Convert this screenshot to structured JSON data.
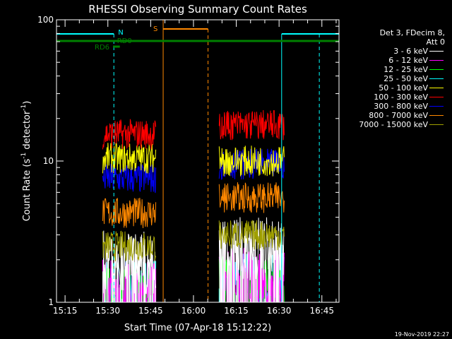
{
  "chart_data": {
    "type": "line",
    "title": "RHESSI Observing Summary Count Rates",
    "xlabel": "Start Time (07-Apr-18 15:12:22)",
    "ylabel_main": "Count Rate (s",
    "ylabel_sup1": "-1",
    "ylabel_mid": " detector",
    "ylabel_sup2": "-1",
    "ylabel_end": ")",
    "yscale": "log",
    "ylim": [
      1,
      100
    ],
    "xlim_minutes": [
      15.2,
      16.85
    ],
    "x_ticks": [
      "15:15",
      "15:30",
      "15:45",
      "16:00",
      "16:15",
      "16:30",
      "16:45"
    ],
    "y_ticks": [
      "1",
      "10",
      "100"
    ],
    "legend_header_1": "Det 3, FDecim 8,",
    "legend_header_2": "Att 0",
    "series": [
      {
        "name": "3 - 6 keV",
        "color": "#ffffff",
        "level": [
          2.1,
          2.6
        ]
      },
      {
        "name": "6 - 12 keV",
        "color": "#ff00ff",
        "level": [
          1.3,
          1.6
        ]
      },
      {
        "name": "12 - 25 keV",
        "color": "#00ff00",
        "level": [
          1.2,
          1.4
        ]
      },
      {
        "name": "25 - 50 keV",
        "color": "#00ffff",
        "level": [
          1.3,
          1.5
        ]
      },
      {
        "name": "50 - 100 keV",
        "color": "#ffff00",
        "level": [
          10.5,
          10.0
        ]
      },
      {
        "name": "100 - 300 keV",
        "color": "#ff0000",
        "level": [
          15.5,
          18.0
        ]
      },
      {
        "name": "300 - 800 keV",
        "color": "#0000ff",
        "level": [
          7.5,
          9.5
        ]
      },
      {
        "name": "800 - 7000 keV",
        "color": "#ff8800",
        "level": [
          4.3,
          5.5
        ]
      },
      {
        "name": "7000 - 15000 keV",
        "color": "#a0a000",
        "level": [
          2.5,
          3.0
        ]
      }
    ],
    "data_windows": [
      [
        15.47,
        15.78
      ],
      [
        16.15,
        16.53
      ]
    ],
    "flags": [
      {
        "label": "N",
        "color": "#00ffff"
      },
      {
        "label": "S",
        "color": "#ff8800"
      },
      {
        "label": "RD6",
        "color": "#008000"
      },
      {
        "label": "RD0",
        "color": "#008000"
      }
    ]
  },
  "timestamp": "19-Nov-2019 22:27"
}
